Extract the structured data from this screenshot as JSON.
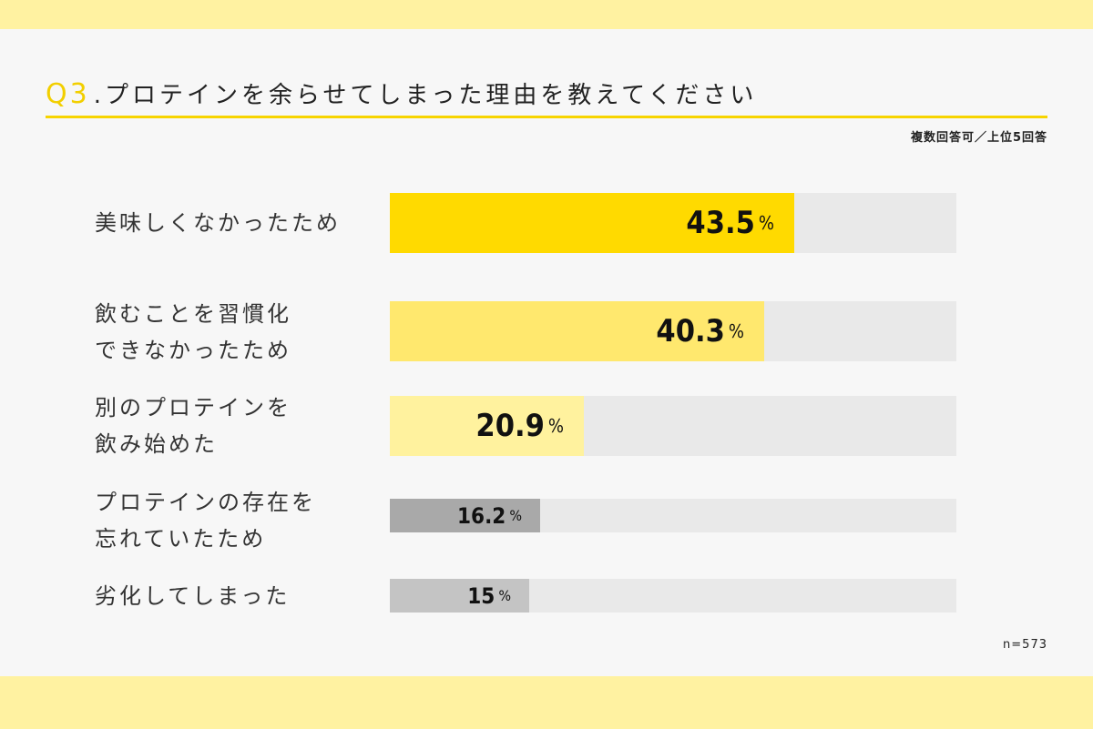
{
  "header": {
    "q_number": "Q3",
    "question": ".プロテインを余らせてしまった理由を教えてください",
    "note": "複数回答可／上位5回答"
  },
  "footer": {
    "sample_size": "n=573"
  },
  "chart_data": {
    "type": "bar",
    "orientation": "horizontal",
    "title": "Q3.プロテインを余らせてしまった理由を教えてください",
    "categories": [
      "美味しくなかったため",
      "飲むことを習慣化できなかったため",
      "別のプロテインを飲み始めた",
      "プロテインの存在を忘れていたため",
      "劣化してしまった"
    ],
    "values": [
      43.5,
      40.3,
      20.9,
      16.2,
      15
    ],
    "unit": "%",
    "xlim": [
      0,
      61
    ],
    "grid": false,
    "legend": false,
    "bars": [
      {
        "label_lines": [
          "美味しくなかったため"
        ],
        "value": 43.5,
        "value_text": "43.5",
        "unit": "%",
        "color": "#ffda00"
      },
      {
        "label_lines": [
          "飲むことを習慣化",
          "できなかったため"
        ],
        "value": 40.3,
        "value_text": "40.3",
        "unit": "%",
        "color": "#ffe86e"
      },
      {
        "label_lines": [
          "別のプロテインを",
          "飲み始めた"
        ],
        "value": 20.9,
        "value_text": "20.9",
        "unit": "%",
        "color": "#fff29e"
      },
      {
        "label_lines": [
          "プロテインの存在を",
          "忘れていたため"
        ],
        "value": 16.2,
        "value_text": "16.2",
        "unit": "%",
        "color": "#a9a9a9"
      },
      {
        "label_lines": [
          "劣化してしまった"
        ],
        "value": 15,
        "value_text": "15",
        "unit": "%",
        "color": "#c4c4c4"
      }
    ]
  }
}
